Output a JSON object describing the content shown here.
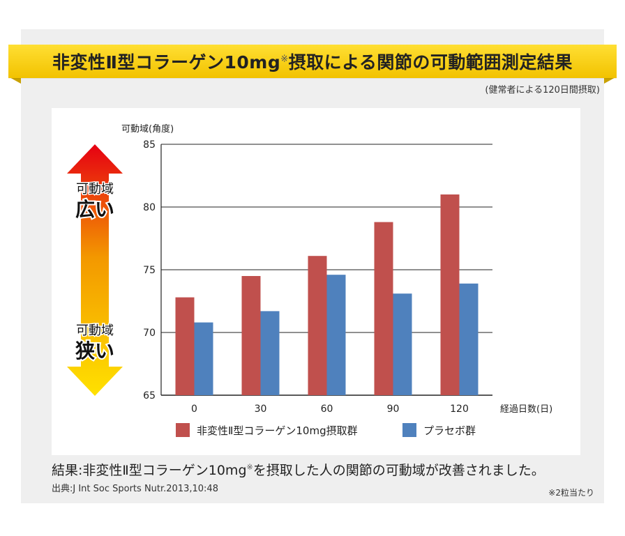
{
  "header": {
    "title_main": "非変性Ⅱ型コラーゲン10mg",
    "title_mark": "※",
    "title_rest": "摂取による関節の可動範囲測定結果",
    "subnote": "(健常者による120日間摂取)"
  },
  "indicator": {
    "top_line1": "可動域",
    "top_line2": "広い",
    "bottom_line1": "可動域",
    "bottom_line2": "狭い"
  },
  "chart_data": {
    "type": "bar",
    "ylabel": "可動域(角度)",
    "xlabel": "経過日数(日)",
    "categories": [
      "0",
      "30",
      "60",
      "90",
      "120"
    ],
    "ylim": [
      65,
      85
    ],
    "yticks": [
      "85",
      "80",
      "75",
      "70",
      "65"
    ],
    "grid": true,
    "legend_position": "bottom",
    "series": [
      {
        "name": "非変性Ⅱ型コラーゲン10mg摂取群",
        "color": "#c0504d",
        "values": [
          72.8,
          74.5,
          76.1,
          78.8,
          81.0
        ]
      },
      {
        "name": "プラセボ群",
        "color": "#4f81bd",
        "values": [
          70.8,
          71.7,
          74.6,
          73.1,
          73.9
        ]
      }
    ]
  },
  "footer": {
    "result_main": "結果:非変性Ⅱ型コラーゲン10mg",
    "result_mark": "※",
    "result_rest": "を摂取した人の関節の可動域が改善されました。",
    "source": "出典:J Int Soc Sports Nutr.2013,10:48",
    "footnote": "※2粒当たり"
  }
}
